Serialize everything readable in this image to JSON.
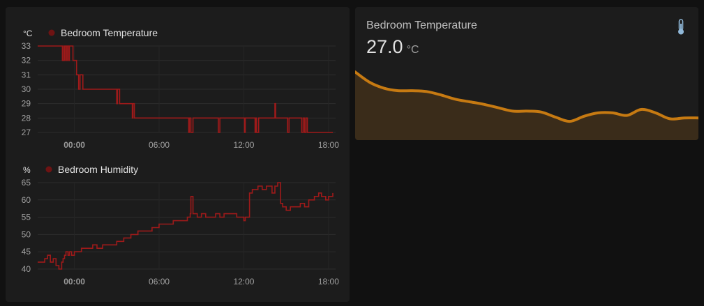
{
  "sensor_card": {
    "name": "Bedroom Temperature",
    "value": "27.0",
    "unit": "°C",
    "icon": "thermometer-icon",
    "line_color": "#c67a12",
    "fill_color": "#3a2c1a"
  },
  "chart_data": [
    {
      "type": "line",
      "step": true,
      "unit_label": "°C",
      "series": [
        {
          "name": "Bedroom Temperature",
          "color": "#9e1a1a",
          "x": [
            -2.6,
            -0.9,
            -0.85,
            -0.75,
            -0.7,
            -0.65,
            -0.55,
            -0.5,
            -0.4,
            -0.35,
            -0.1,
            0.15,
            0.3,
            0.4,
            0.45,
            0.6,
            0.9,
            1.1,
            1.2,
            1.3,
            3.0,
            3.05,
            3.2,
            4.1,
            4.15,
            4.25,
            8.1,
            8.15,
            8.25,
            8.4,
            10.2,
            10.3,
            10.35,
            12.05,
            12.1,
            12.2,
            12.8,
            12.85,
            12.9,
            13.05,
            13.2,
            14.2,
            14.25,
            14.3,
            15.1,
            15.2,
            15.3,
            16.1,
            16.2,
            16.3,
            16.4,
            16.5,
            18.3
          ],
          "y": [
            33,
            33,
            32,
            33,
            32,
            33,
            32,
            33,
            32,
            33,
            32,
            31,
            30,
            31,
            31,
            30,
            30,
            30,
            30,
            30,
            29,
            30,
            29,
            28,
            29,
            28,
            27,
            28,
            27,
            28,
            27,
            28,
            28,
            27,
            28,
            28,
            27,
            28,
            27,
            28,
            28,
            29,
            28,
            28,
            27,
            28,
            28,
            27,
            28,
            27,
            28,
            27,
            27
          ]
        }
      ],
      "ylim": [
        27,
        33
      ],
      "yticks": [
        "33",
        "32",
        "31",
        "30",
        "29",
        "28",
        "27"
      ],
      "xlim": [
        -2.6,
        18.5
      ],
      "xticks": [
        {
          "value": 0,
          "label": "00:00",
          "bold": true
        },
        {
          "value": 6,
          "label": "06:00",
          "bold": false
        },
        {
          "value": 12,
          "label": "12:00",
          "bold": false
        },
        {
          "value": 18,
          "label": "18:00",
          "bold": false
        }
      ],
      "legend": "top-left",
      "grid": true
    },
    {
      "type": "line",
      "step": true,
      "unit_label": "%",
      "series": [
        {
          "name": "Bedroom Humidity",
          "color": "#9e1a1a",
          "x": [
            -2.6,
            -2.1,
            -1.9,
            -1.7,
            -1.5,
            -1.3,
            -1.1,
            -0.9,
            -0.8,
            -0.7,
            -0.6,
            -0.45,
            -0.35,
            -0.2,
            0.0,
            0.2,
            0.5,
            0.8,
            1.1,
            1.3,
            1.6,
            2.0,
            2.5,
            3.0,
            3.5,
            4.0,
            4.5,
            5.0,
            5.5,
            6.0,
            6.5,
            7.0,
            7.5,
            8.0,
            8.2,
            8.25,
            8.4,
            8.7,
            9.0,
            9.3,
            9.6,
            10.0,
            10.3,
            10.6,
            11.0,
            11.5,
            12.0,
            12.1,
            12.4,
            12.6,
            13.0,
            13.3,
            13.6,
            14.0,
            14.2,
            14.4,
            14.6,
            14.75,
            15.0,
            15.3,
            15.6,
            16.0,
            16.3,
            16.6,
            17.0,
            17.3,
            17.5,
            17.8,
            18.0,
            18.3
          ],
          "y": [
            42,
            43,
            44,
            42,
            43,
            41,
            40,
            42,
            43,
            44,
            45,
            44,
            45,
            44,
            45,
            45,
            46,
            46,
            46,
            47,
            46,
            47,
            47,
            48,
            49,
            50,
            51,
            51,
            52,
            53,
            53,
            54,
            54,
            55,
            56,
            61,
            56,
            55,
            56,
            55,
            55,
            56,
            55,
            56,
            56,
            55,
            54,
            55,
            62,
            63,
            64,
            63,
            64,
            62,
            64,
            65,
            59,
            58,
            57,
            58,
            58,
            59,
            58,
            60,
            61,
            62,
            61,
            60,
            61,
            62
          ]
        }
      ],
      "ylim": [
        40,
        65
      ],
      "yticks": [
        "65",
        "60",
        "55",
        "50",
        "45",
        "40"
      ],
      "xlim": [
        -2.6,
        18.5
      ],
      "xticks": [
        {
          "value": 0,
          "label": "00:00",
          "bold": true
        },
        {
          "value": 6,
          "label": "06:00",
          "bold": false
        },
        {
          "value": 12,
          "label": "12:00",
          "bold": false
        },
        {
          "value": 18,
          "label": "18:00",
          "bold": false
        }
      ],
      "legend": "top-left",
      "grid": true
    },
    {
      "type": "area",
      "series": [
        {
          "name": "Bedroom Temperature",
          "x": [
            0,
            1,
            2,
            3,
            4,
            5,
            6,
            7,
            8,
            9,
            10,
            11,
            12,
            13,
            14,
            15,
            16,
            17,
            18,
            19,
            20,
            21,
            22,
            23,
            24
          ],
          "y": [
            33.0,
            31.8,
            31.1,
            30.8,
            30.8,
            30.7,
            30.3,
            29.8,
            29.5,
            29.2,
            28.8,
            28.4,
            28.4,
            28.3,
            27.7,
            27.2,
            27.8,
            28.2,
            28.2,
            27.9,
            28.6,
            28.2,
            27.5,
            27.6,
            27.6
          ]
        }
      ],
      "ylim": [
        25,
        34
      ],
      "grid": false
    }
  ]
}
